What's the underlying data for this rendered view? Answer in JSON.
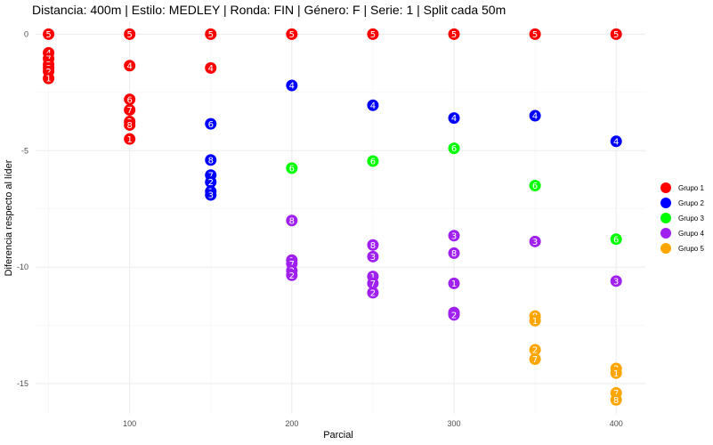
{
  "chart_data": {
    "type": "scatter",
    "title": "Distancia: 400m | Estilo: MEDLEY | Ronda: FIN | Género: F | Serie: 1 | Split cada 50m",
    "xlabel": "Parcial",
    "ylabel": "Diferencia respecto al líder",
    "xlim": [
      42,
      418
    ],
    "ylim": [
      -16.3,
      0.55
    ],
    "x_ticks": [
      100,
      200,
      300,
      400
    ],
    "y_ticks": [
      0,
      -5,
      -10,
      -15
    ],
    "grid": true,
    "legend": "right",
    "series": [
      {
        "name": "Grupo 1",
        "color": "#ff0000",
        "points": [
          {
            "x": 50,
            "y": 0,
            "label": "5"
          },
          {
            "x": 50,
            "y": -0.8,
            "label": "4"
          },
          {
            "x": 50,
            "y": -1.05,
            "label": "7"
          },
          {
            "x": 50,
            "y": -1.3,
            "label": "3"
          },
          {
            "x": 50,
            "y": -1.45,
            "label": "8"
          },
          {
            "x": 50,
            "y": -1.6,
            "label": "2"
          },
          {
            "x": 50,
            "y": -1.9,
            "label": "1"
          },
          {
            "x": 100,
            "y": 0,
            "label": "5"
          },
          {
            "x": 100,
            "y": -1.35,
            "label": "4"
          },
          {
            "x": 100,
            "y": -2.8,
            "label": "6"
          },
          {
            "x": 100,
            "y": -3.25,
            "label": "7"
          },
          {
            "x": 100,
            "y": -3.75,
            "label": "3"
          },
          {
            "x": 100,
            "y": -3.9,
            "label": "8"
          },
          {
            "x": 100,
            "y": -4.5,
            "label": "1"
          },
          {
            "x": 150,
            "y": 0,
            "label": "5"
          },
          {
            "x": 150,
            "y": -1.45,
            "label": "4"
          },
          {
            "x": 200,
            "y": 0,
            "label": "5"
          },
          {
            "x": 250,
            "y": 0,
            "label": "5"
          },
          {
            "x": 300,
            "y": 0,
            "label": "5"
          },
          {
            "x": 350,
            "y": 0,
            "label": "5"
          },
          {
            "x": 400,
            "y": 0,
            "label": "5"
          }
        ]
      },
      {
        "name": "Grupo 2",
        "color": "#0000ff",
        "points": [
          {
            "x": 150,
            "y": -3.85,
            "label": "6"
          },
          {
            "x": 150,
            "y": -5.4,
            "label": "8"
          },
          {
            "x": 150,
            "y": -6.05,
            "label": "7"
          },
          {
            "x": 150,
            "y": -6.35,
            "label": "2"
          },
          {
            "x": 150,
            "y": -6.75,
            "label": "1"
          },
          {
            "x": 150,
            "y": -6.9,
            "label": "3"
          },
          {
            "x": 200,
            "y": -2.2,
            "label": "4"
          },
          {
            "x": 250,
            "y": -3.05,
            "label": "4"
          },
          {
            "x": 300,
            "y": -3.6,
            "label": "4"
          },
          {
            "x": 350,
            "y": -3.5,
            "label": "4"
          },
          {
            "x": 400,
            "y": -4.6,
            "label": "4"
          }
        ]
      },
      {
        "name": "Grupo 3",
        "color": "#00ff00",
        "points": [
          {
            "x": 200,
            "y": -5.75,
            "label": "6"
          },
          {
            "x": 250,
            "y": -5.45,
            "label": "6"
          },
          {
            "x": 300,
            "y": -4.9,
            "label": "6"
          },
          {
            "x": 350,
            "y": -6.5,
            "label": "6"
          },
          {
            "x": 400,
            "y": -8.8,
            "label": "6"
          }
        ]
      },
      {
        "name": "Grupo 4",
        "color": "#a020f0",
        "points": [
          {
            "x": 200,
            "y": -8.0,
            "label": "8"
          },
          {
            "x": 200,
            "y": -9.7,
            "label": "1"
          },
          {
            "x": 200,
            "y": -9.85,
            "label": "7"
          },
          {
            "x": 200,
            "y": -10.15,
            "label": "3"
          },
          {
            "x": 200,
            "y": -10.35,
            "label": "2"
          },
          {
            "x": 250,
            "y": -9.05,
            "label": "8"
          },
          {
            "x": 250,
            "y": -9.55,
            "label": "3"
          },
          {
            "x": 250,
            "y": -10.4,
            "label": "1"
          },
          {
            "x": 250,
            "y": -10.7,
            "label": "7"
          },
          {
            "x": 250,
            "y": -11.1,
            "label": "2"
          },
          {
            "x": 300,
            "y": -8.65,
            "label": "3"
          },
          {
            "x": 300,
            "y": -9.4,
            "label": "8"
          },
          {
            "x": 300,
            "y": -10.7,
            "label": "1"
          },
          {
            "x": 300,
            "y": -11.95,
            "label": "7"
          },
          {
            "x": 300,
            "y": -12.05,
            "label": "2"
          },
          {
            "x": 350,
            "y": -8.9,
            "label": "3"
          },
          {
            "x": 400,
            "y": -10.6,
            "label": "3"
          }
        ]
      },
      {
        "name": "Grupo 5",
        "color": "#ffa500",
        "points": [
          {
            "x": 350,
            "y": -12.1,
            "label": "8"
          },
          {
            "x": 350,
            "y": -12.3,
            "label": "1"
          },
          {
            "x": 350,
            "y": -13.55,
            "label": "2"
          },
          {
            "x": 350,
            "y": -13.95,
            "label": "7"
          },
          {
            "x": 400,
            "y": -14.35,
            "label": "2"
          },
          {
            "x": 400,
            "y": -14.55,
            "label": "1"
          },
          {
            "x": 400,
            "y": -15.4,
            "label": "7"
          },
          {
            "x": 400,
            "y": -15.7,
            "label": "8"
          }
        ]
      }
    ]
  }
}
